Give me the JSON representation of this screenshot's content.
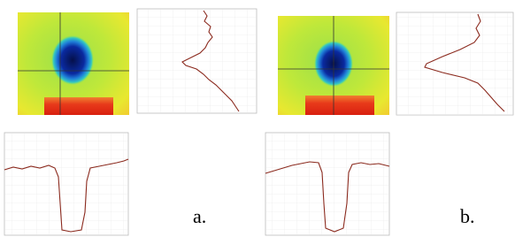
{
  "panels": [
    {
      "label": "a."
    },
    {
      "label": "b."
    }
  ]
}
